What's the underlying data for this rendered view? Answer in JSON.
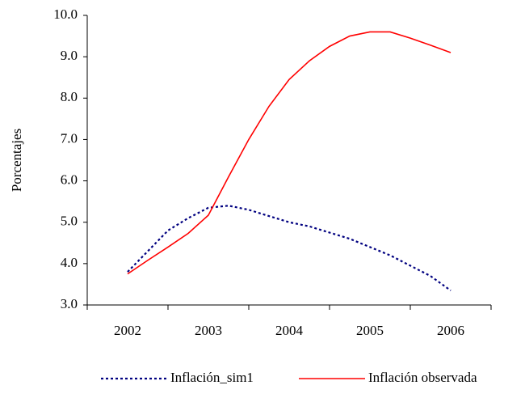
{
  "chart_data": {
    "type": "line",
    "y_label": "Porcentajes",
    "x": [
      2002,
      2002.25,
      2002.5,
      2002.75,
      2003,
      2003.25,
      2003.5,
      2003.75,
      2004,
      2004.25,
      2004.5,
      2004.75,
      2005,
      2005.25,
      2005.5,
      2005.75,
      2006
    ],
    "xlim": [
      2001.5,
      2006.5
    ],
    "xticks": [
      2002,
      2003,
      2004,
      2005,
      2006
    ],
    "ylim": [
      3,
      10
    ],
    "yticks": [
      {
        "value": 3,
        "label": "3.0"
      },
      {
        "value": 4,
        "label": "4.0"
      },
      {
        "value": 5,
        "label": "5.0"
      },
      {
        "value": 6,
        "label": "6.0"
      },
      {
        "value": 7,
        "label": "7.0"
      },
      {
        "value": 8,
        "label": "8.0"
      },
      {
        "value": 9,
        "label": "9.0"
      },
      {
        "value": 10,
        "label": "10.0"
      }
    ],
    "series": [
      {
        "name": "Inflación_sim1",
        "color": "#000080",
        "dashed": true,
        "values": [
          3.8,
          4.3,
          4.8,
          5.1,
          5.35,
          5.4,
          5.3,
          5.15,
          5.0,
          4.9,
          4.75,
          4.6,
          4.4,
          4.2,
          3.95,
          3.7,
          3.35
        ]
      },
      {
        "name": "Inflación observada",
        "color": "#ff0000",
        "dashed": false,
        "values": [
          3.75,
          4.08,
          4.4,
          4.73,
          5.17,
          6.1,
          7.0,
          7.8,
          8.45,
          8.9,
          9.25,
          9.5,
          9.6,
          9.6,
          9.45,
          9.28,
          9.1
        ]
      }
    ]
  }
}
